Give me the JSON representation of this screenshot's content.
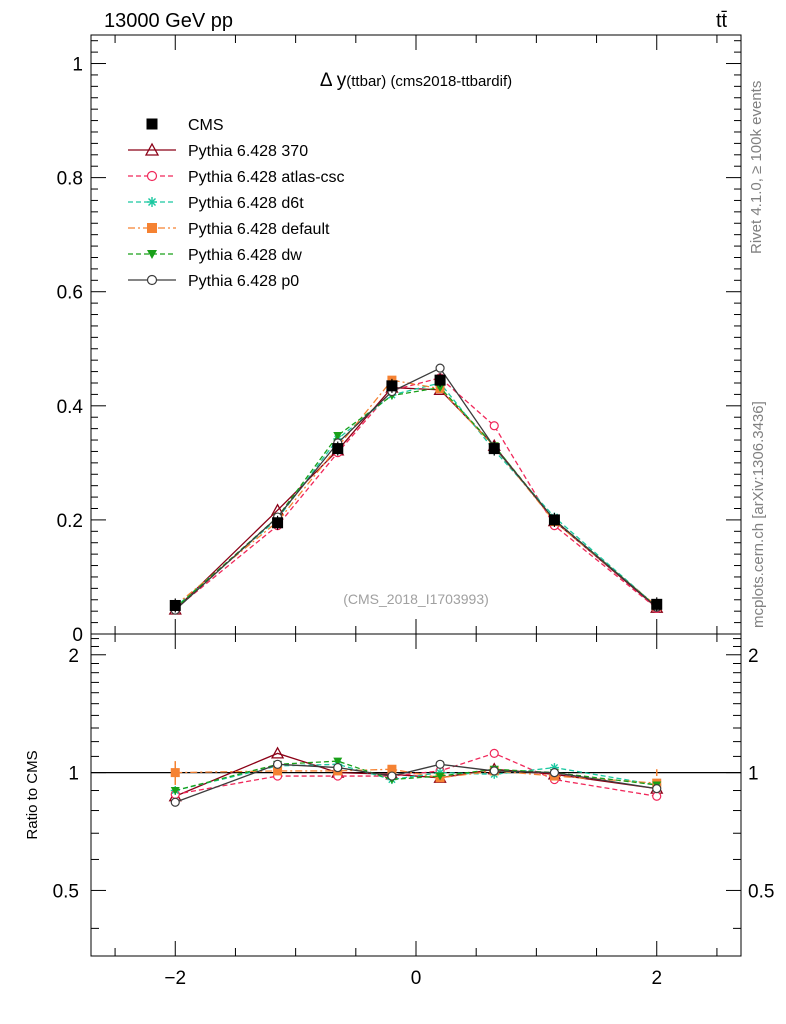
{
  "header": {
    "energy_label": "13000 GeV pp",
    "process_label": "tt̄",
    "plot_title": "Δ y(ttbar) (cms2018-ttbardif)",
    "plot_title_prefix": "Δ y",
    "plot_title_suffix": "(ttbar) (cms2018-ttbardif)",
    "analysis_id": "(CMS_2018_I1703993)"
  },
  "side_labels": {
    "rivet": "Rivet 4.1.0, ≥ 100k events",
    "mcplots": "mcplots.cern.ch [arXiv:1306.3436]"
  },
  "colors": {
    "CMS": "#000000",
    "Pythia 6.428 370": "#8b0016",
    "Pythia 6.428 atlas-csc": "#f0285a",
    "Pythia 6.428 d6t": "#19c8a0",
    "Pythia 6.428 default": "#f58232",
    "Pythia 6.428 dw": "#19a019",
    "Pythia 6.428 p0": "#3c3c3c"
  },
  "chart_data": [
    {
      "type": "line",
      "title": "Δ y(ttbar) (cms2018-ttbardif)",
      "xlabel": "",
      "ylabel": "",
      "xlim": [
        -2.7,
        2.7
      ],
      "ylim": [
        0,
        1.05
      ],
      "yticks": [
        0,
        0.2,
        0.4,
        0.6,
        0.8,
        1
      ],
      "ytick_labels": [
        "0",
        "0.2",
        "0.4",
        "0.6",
        "0.8",
        "1"
      ],
      "x": [
        -2.0,
        -1.15,
        -0.65,
        -0.2,
        0.2,
        0.65,
        1.15,
        2.0
      ],
      "series": [
        {
          "name": "CMS",
          "marker": "square",
          "values": [
            0.05,
            0.195,
            0.325,
            0.435,
            0.445,
            0.325,
            0.2,
            0.052
          ]
        },
        {
          "name": "Pythia 6.428 370",
          "marker": "triangle-open",
          "dash": "solid",
          "values": [
            0.043,
            0.217,
            0.322,
            0.432,
            0.428,
            0.33,
            0.198,
            0.046
          ]
        },
        {
          "name": "Pythia 6.428 atlas-csc",
          "marker": "circle-open",
          "dash": "dashed",
          "values": [
            0.044,
            0.19,
            0.318,
            0.427,
            0.449,
            0.365,
            0.19,
            0.045
          ]
        },
        {
          "name": "Pythia 6.428 d6t",
          "marker": "star",
          "dash": "dashed",
          "values": [
            0.047,
            0.202,
            0.342,
            0.419,
            0.44,
            0.322,
            0.205,
            0.048
          ]
        },
        {
          "name": "Pythia 6.428 default",
          "marker": "square",
          "dash": "dashdot",
          "values": [
            0.05,
            0.197,
            0.328,
            0.445,
            0.43,
            0.328,
            0.197,
            0.049
          ]
        },
        {
          "name": "Pythia 6.428 dw",
          "marker": "triangle-down",
          "dash": "dashed",
          "values": [
            0.045,
            0.205,
            0.348,
            0.418,
            0.432,
            0.33,
            0.2,
            0.048
          ]
        },
        {
          "name": "Pythia 6.428 p0",
          "marker": "circle-open",
          "dash": "solid",
          "values": [
            0.042,
            0.205,
            0.335,
            0.425,
            0.466,
            0.328,
            0.2,
            0.047
          ]
        }
      ],
      "legend_position": "top-left"
    },
    {
      "type": "line",
      "title": "",
      "xlabel": "",
      "ylabel": "Ratio to CMS",
      "xlim": [
        -2.7,
        2.7
      ],
      "ylim": [
        0.34,
        2.26
      ],
      "xticks": [
        -2,
        0,
        2
      ],
      "xtick_labels": [
        "−2",
        "0",
        "2"
      ],
      "yticks": [
        0.5,
        1,
        2
      ],
      "ytick_labels": [
        "0.5",
        "1",
        "2"
      ],
      "reference_line": 1,
      "x": [
        -2.0,
        -1.15,
        -0.65,
        -0.2,
        0.2,
        0.65,
        1.15,
        2.0
      ],
      "series": [
        {
          "name": "CMS",
          "values": [
            1.0,
            1.0,
            1.0,
            1.0,
            1.0,
            1.0,
            1.0,
            1.0
          ],
          "errors": [
            0.07,
            0.02,
            0.02,
            0.02,
            0.02,
            0.02,
            0.02,
            0.02
          ]
        },
        {
          "name": "Pythia 6.428 370",
          "values": [
            0.87,
            1.12,
            1.0,
            0.99,
            0.97,
            1.02,
            0.99,
            0.91
          ]
        },
        {
          "name": "Pythia 6.428 atlas-csc",
          "values": [
            0.88,
            0.98,
            0.98,
            0.98,
            1.01,
            1.12,
            0.96,
            0.87
          ]
        },
        {
          "name": "Pythia 6.428 d6t",
          "values": [
            0.9,
            1.04,
            1.05,
            0.96,
            1.0,
            0.99,
            1.03,
            0.93
          ]
        },
        {
          "name": "Pythia 6.428 default",
          "values": [
            1.0,
            1.01,
            1.01,
            1.02,
            0.97,
            1.01,
            0.98,
            0.94
          ]
        },
        {
          "name": "Pythia 6.428 dw",
          "values": [
            0.9,
            1.05,
            1.07,
            0.96,
            0.98,
            1.02,
            1.0,
            0.93
          ]
        },
        {
          "name": "Pythia 6.428 p0",
          "values": [
            0.84,
            1.05,
            1.03,
            0.98,
            1.05,
            1.01,
            1.0,
            0.91
          ]
        }
      ]
    }
  ]
}
